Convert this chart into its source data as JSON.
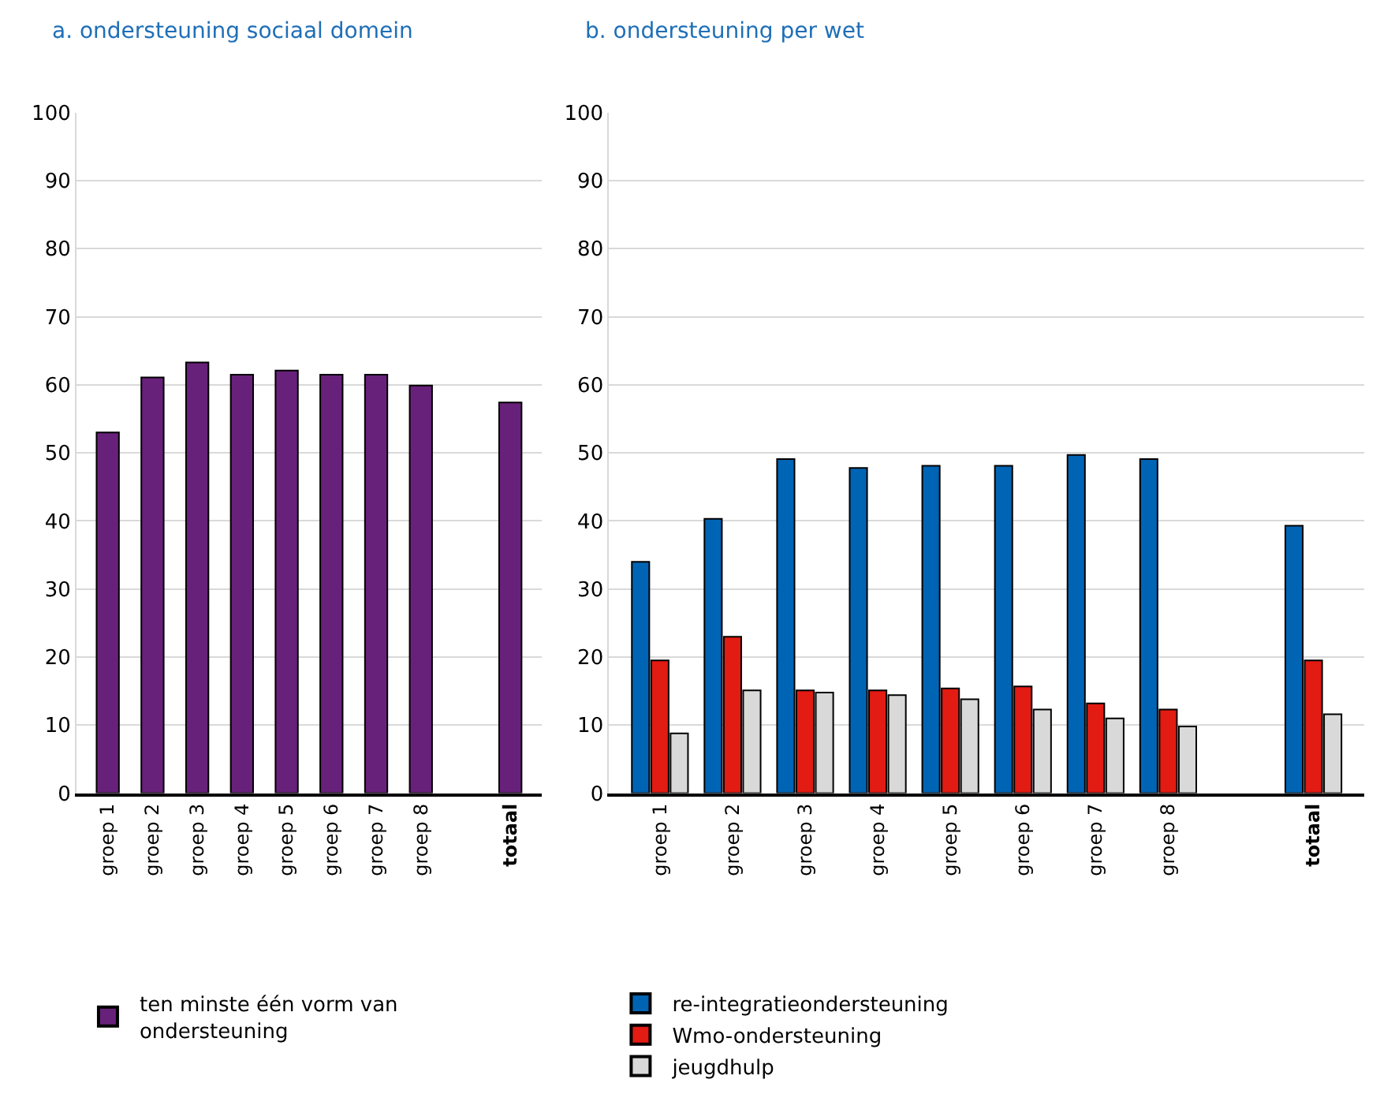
{
  "chart_data": [
    {
      "type": "bar",
      "title": "a. ondersteuning sociaal domein",
      "categories": [
        "groep 1",
        "groep 2",
        "groep 3",
        "groep 4",
        "groep 5",
        "groep 6",
        "groep 7",
        "groep 8",
        "totaal"
      ],
      "series": [
        {
          "name": "ten minste één vorm van ondersteuning",
          "color": "#68217a",
          "values": [
            53,
            61.1,
            63.3,
            61.5,
            62.1,
            61.5,
            61.5,
            59.9,
            57.4
          ]
        }
      ],
      "ylim": [
        0,
        100
      ],
      "yticks": [
        0,
        10,
        20,
        30,
        40,
        50,
        60,
        70,
        80,
        90,
        100
      ],
      "grid": "y",
      "legend": "bottom"
    },
    {
      "type": "bar",
      "title": "b. ondersteuning per wet",
      "categories": [
        "groep 1",
        "groep 2",
        "groep 3",
        "groep 4",
        "groep 5",
        "groep 6",
        "groep 7",
        "groep 8",
        "totaal"
      ],
      "series": [
        {
          "name": "re-integratieondersteuning",
          "color": "#0064b4",
          "values": [
            34,
            40.3,
            49.1,
            47.8,
            48.1,
            48.1,
            49.7,
            49.1,
            39.3
          ]
        },
        {
          "name": "Wmo-ondersteuning",
          "color": "#e21b13",
          "values": [
            19.5,
            23,
            15.1,
            15.1,
            15.4,
            15.7,
            13.2,
            12.3,
            19.5
          ]
        },
        {
          "name": "jeugdhulp",
          "color": "#d9d9d9",
          "values": [
            8.8,
            15.1,
            14.8,
            14.4,
            13.8,
            12.3,
            11,
            9.8,
            11.6
          ]
        }
      ],
      "ylim": [
        0,
        100
      ],
      "yticks": [
        0,
        10,
        20,
        30,
        40,
        50,
        60,
        70,
        80,
        90,
        100
      ],
      "grid": "y",
      "legend": "bottom"
    }
  ]
}
